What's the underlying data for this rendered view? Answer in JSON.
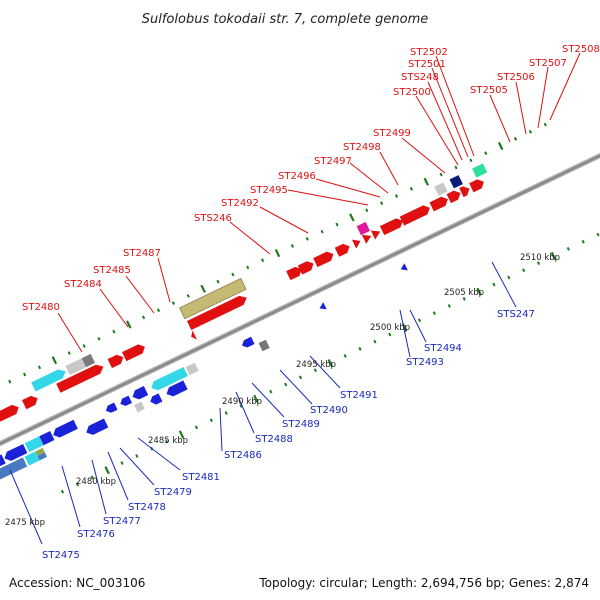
{
  "title": "Sulfolobus tokodaii str. 7, complete genome",
  "footer": {
    "accession": "Accession: NC_003106",
    "summary": "Topology: circular; Length: 2,694,756 bp; Genes: 2,874"
  },
  "colors": {
    "forward_label": "#dd1111",
    "reverse_label": "#1a2ab8",
    "backbone": "#8a8a8a",
    "tick": "#1f7a1f"
  },
  "scale_labels": [
    "2475 kbp",
    "2480 kbp",
    "2485 kbp",
    "2490 kbp",
    "2495 kbp",
    "2500 kbp",
    "2505 kbp",
    "2510 kbp"
  ],
  "forward_labels": [
    "ST2480",
    "ST2484",
    "ST2485",
    "ST2487",
    "STS246",
    "ST2492",
    "ST2495",
    "ST2496",
    "ST2497",
    "ST2498",
    "ST2499",
    "ST2500",
    "STS248",
    "ST2501",
    "ST2502",
    "ST2505",
    "ST2506",
    "ST2507",
    "ST2508"
  ],
  "reverse_labels": [
    "ST2475",
    "ST2476",
    "ST2477",
    "ST2478",
    "ST2479",
    "ST2481",
    "ST2486",
    "ST2488",
    "ST2489",
    "ST2490",
    "ST2491",
    "ST2493",
    "ST2494",
    "STS247"
  ]
}
